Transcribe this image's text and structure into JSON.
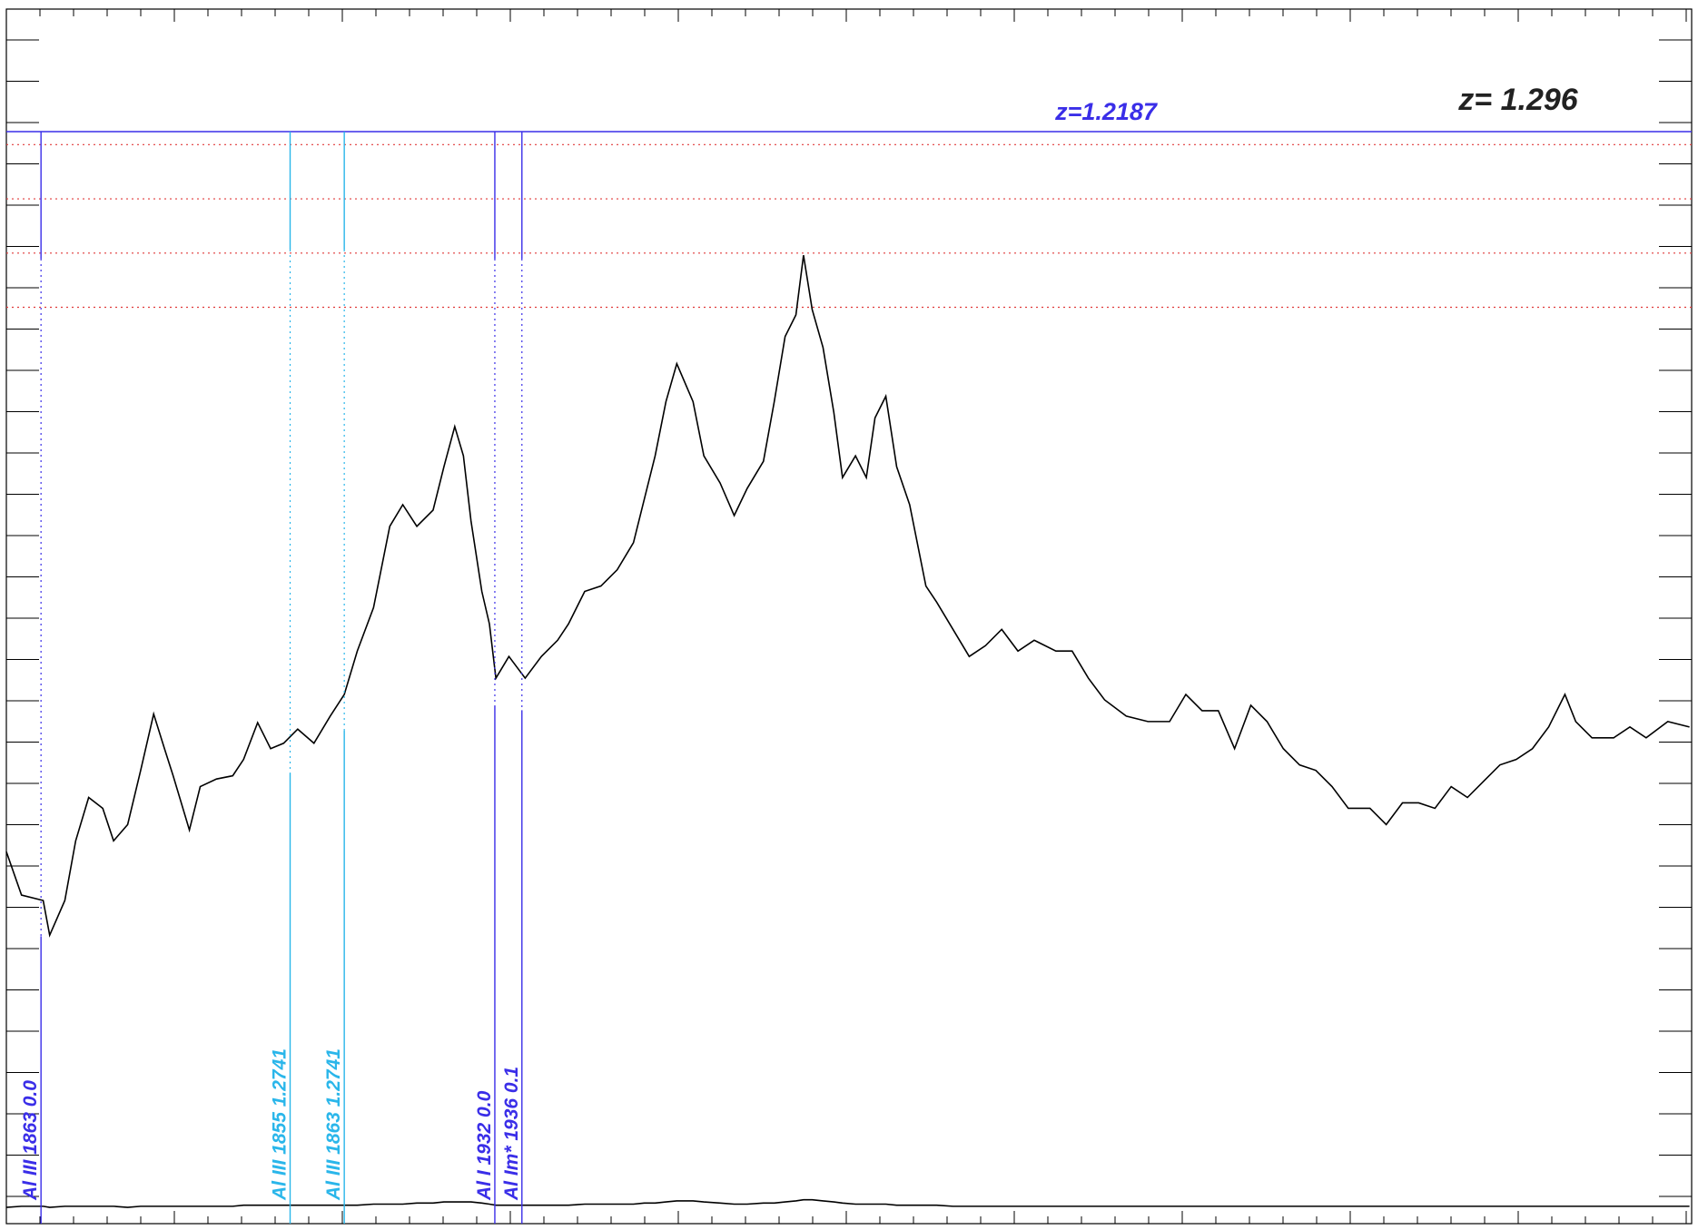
{
  "chart_data": {
    "type": "line",
    "xlim": [
      0,
      1556
    ],
    "ylim": [
      0,
      1120
    ],
    "x": [
      0,
      14,
      34,
      40,
      54,
      64,
      76,
      89,
      99,
      112,
      124,
      136,
      146,
      154,
      169,
      179,
      194,
      209,
      219,
      232,
      244,
      256,
      269,
      284,
      299,
      312,
      324,
      339,
      354,
      366,
      379,
      394,
      404,
      414,
      422,
      429,
      439,
      446,
      452,
      464,
      479,
      494,
      509,
      519,
      534,
      549,
      564,
      579,
      589,
      599,
      609,
      619,
      634,
      644,
      659,
      672,
      684,
      699,
      709,
      719,
      729,
      736,
      744,
      754,
      764,
      772,
      784,
      794,
      802,
      812,
      822,
      834,
      849,
      859,
      874,
      889,
      904,
      919,
      934,
      949,
      969,
      984,
      999,
      1014,
      1034,
      1054,
      1074,
      1089,
      1104,
      1119,
      1134,
      1149,
      1164,
      1179,
      1194,
      1209,
      1224,
      1239,
      1259,
      1274,
      1289,
      1304,
      1319,
      1334,
      1349,
      1364,
      1379,
      1394,
      1409,
      1424,
      1439,
      1449,
      1464,
      1484,
      1499,
      1514,
      1534,
      1554
    ],
    "series": [
      {
        "color": "#000000",
        "values": [
          343,
          303,
          298,
          266,
          298,
          353,
          393,
          383,
          353,
          368,
          418,
          470,
          438,
          413,
          363,
          403,
          410,
          413,
          428,
          462,
          438,
          443,
          456,
          443,
          468,
          488,
          528,
          568,
          643,
          663,
          643,
          658,
          698,
          735,
          708,
          648,
          583,
          553,
          503,
          523,
          503,
          523,
          538,
          553,
          583,
          588,
          603,
          628,
          668,
          708,
          758,
          793,
          758,
          708,
          683,
          653,
          678,
          703,
          758,
          818,
          838,
          893,
          843,
          808,
          748,
          688,
          708,
          688,
          743,
          763,
          698,
          663,
          588,
          573,
          548,
          523,
          533,
          548,
          528,
          538,
          528,
          528,
          503,
          483,
          468,
          463,
          463,
          488,
          473,
          473,
          438,
          478,
          463,
          438,
          423,
          418,
          403,
          383,
          383,
          368,
          388,
          388,
          383,
          403,
          393,
          408,
          423,
          428,
          438,
          458,
          488,
          463,
          448,
          448,
          458,
          448,
          463,
          458
        ]
      },
      {
        "color": "#000000",
        "values": [
          15,
          16,
          16,
          15,
          16,
          16,
          16,
          16,
          16,
          15,
          16,
          16,
          16,
          16,
          16,
          16,
          16,
          16,
          17,
          17,
          17,
          17,
          17,
          17,
          17,
          17,
          17,
          18,
          18,
          18,
          19,
          19,
          20,
          20,
          20,
          20,
          19,
          18,
          17,
          17,
          17,
          17,
          17,
          17,
          18,
          18,
          18,
          18,
          19,
          19,
          20,
          21,
          21,
          20,
          19,
          18,
          18,
          19,
          19,
          20,
          21,
          22,
          22,
          21,
          20,
          19,
          18,
          18,
          18,
          18,
          17,
          17,
          17,
          17,
          16,
          16,
          16,
          16,
          16,
          16,
          16,
          16,
          16,
          16,
          16,
          16,
          16,
          16,
          16,
          16,
          16,
          16,
          16,
          16,
          16,
          16,
          16,
          16,
          16,
          16,
          16,
          16,
          16,
          16,
          16,
          16,
          16,
          16,
          16,
          16,
          16,
          16,
          16,
          16,
          16,
          16,
          16,
          16
        ]
      }
    ],
    "redshift_line": {
      "label": "z=1.2187",
      "value": 1007,
      "color": "#3a2ee8"
    },
    "dotted_levels": {
      "color": "#e03a3a",
      "values": [
        995,
        945,
        895,
        845
      ]
    },
    "redshift_text": "z= 1.296",
    "markers": [
      {
        "label": "Al III 1863 0.0",
        "x": 32,
        "color": "#3a2ee8"
      },
      {
        "label": "Al III 1855 1.2741",
        "x": 262,
        "color": "#2ab6ea"
      },
      {
        "label": "Al III 1863 1.2741",
        "x": 312,
        "color": "#2ab6ea"
      },
      {
        "label": "Al I 1932 0.0",
        "x": 451,
        "color": "#3a2ee8"
      },
      {
        "label": "Al Im* 1936 0.1",
        "x": 476,
        "color": "#3a2ee8"
      }
    ]
  }
}
